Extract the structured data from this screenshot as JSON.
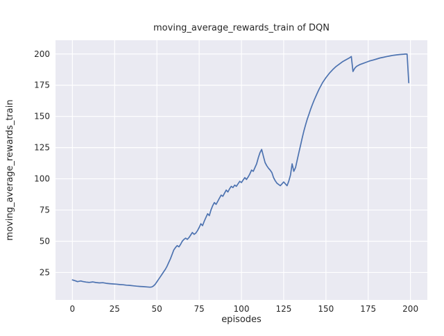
{
  "chart_data": {
    "type": "line",
    "title": "moving_average_rewards_train of DQN",
    "xlabel": "episodes",
    "ylabel": "moving_average_rewards_train",
    "xlim": [
      -10,
      210
    ],
    "ylim": [
      3,
      211
    ],
    "xticks": [
      0,
      25,
      50,
      75,
      100,
      125,
      150,
      175,
      200
    ],
    "yticks": [
      25,
      50,
      75,
      100,
      125,
      150,
      175,
      200
    ],
    "grid": true,
    "legend": null,
    "style": {
      "background": "#eaeaf2",
      "grid_color": "#ffffff",
      "line_color": "#4c72b0",
      "text_color": "#262626",
      "figure_background": "#ffffff"
    },
    "series": [
      {
        "name": "moving_average_rewards_train",
        "points": [
          [
            0,
            19
          ],
          [
            1,
            18.6
          ],
          [
            2,
            18.2
          ],
          [
            3,
            17.6
          ],
          [
            4,
            17.9
          ],
          [
            5,
            18.2
          ],
          [
            6,
            17.8
          ],
          [
            8,
            17.3
          ],
          [
            10,
            17
          ],
          [
            12,
            17.4
          ],
          [
            14,
            16.9
          ],
          [
            16,
            16.6
          ],
          [
            18,
            16.8
          ],
          [
            20,
            16.3
          ],
          [
            22,
            16
          ],
          [
            24,
            15.8
          ],
          [
            26,
            15.6
          ],
          [
            28,
            15.3
          ],
          [
            30,
            15.1
          ],
          [
            32,
            14.8
          ],
          [
            34,
            14.6
          ],
          [
            36,
            14.3
          ],
          [
            38,
            14
          ],
          [
            40,
            13.8
          ],
          [
            42,
            13.6
          ],
          [
            44,
            13.4
          ],
          [
            46,
            13.2
          ],
          [
            47,
            13.4
          ],
          [
            48,
            14.2
          ],
          [
            49,
            15.5
          ],
          [
            50,
            17.5
          ],
          [
            51,
            19.5
          ],
          [
            52,
            21.5
          ],
          [
            53,
            23.5
          ],
          [
            54,
            25.5
          ],
          [
            55,
            27.5
          ],
          [
            56,
            30
          ],
          [
            57,
            33
          ],
          [
            58,
            36
          ],
          [
            59,
            39.5
          ],
          [
            60,
            43
          ],
          [
            61,
            45
          ],
          [
            62,
            46.5
          ],
          [
            63,
            45.5
          ],
          [
            64,
            47.5
          ],
          [
            65,
            50
          ],
          [
            66,
            51.5
          ],
          [
            67,
            52.5
          ],
          [
            68,
            51.5
          ],
          [
            69,
            53
          ],
          [
            70,
            55
          ],
          [
            71,
            57
          ],
          [
            72,
            55.5
          ],
          [
            73,
            56.5
          ],
          [
            74,
            58.5
          ],
          [
            75,
            61
          ],
          [
            76,
            64
          ],
          [
            77,
            62.5
          ],
          [
            78,
            66
          ],
          [
            79,
            69
          ],
          [
            80,
            72
          ],
          [
            81,
            70.5
          ],
          [
            82,
            75
          ],
          [
            83,
            78.5
          ],
          [
            84,
            81
          ],
          [
            85,
            79.5
          ],
          [
            86,
            82
          ],
          [
            87,
            84.5
          ],
          [
            88,
            87
          ],
          [
            89,
            86
          ],
          [
            90,
            88.5
          ],
          [
            91,
            91
          ],
          [
            92,
            89.5
          ],
          [
            93,
            92
          ],
          [
            94,
            94
          ],
          [
            95,
            93
          ],
          [
            96,
            95
          ],
          [
            97,
            94
          ],
          [
            98,
            96
          ],
          [
            99,
            98
          ],
          [
            100,
            97
          ],
          [
            101,
            99
          ],
          [
            102,
            101
          ],
          [
            103,
            99.5
          ],
          [
            104,
            101.5
          ],
          [
            105,
            104
          ],
          [
            106,
            107
          ],
          [
            107,
            106
          ],
          [
            108,
            109
          ],
          [
            109,
            112
          ],
          [
            110,
            117
          ],
          [
            111,
            121
          ],
          [
            112,
            123.5
          ],
          [
            113,
            118
          ],
          [
            114,
            113
          ],
          [
            115,
            110.5
          ],
          [
            116,
            108.5
          ],
          [
            117,
            107
          ],
          [
            118,
            105
          ],
          [
            119,
            101
          ],
          [
            120,
            98.5
          ],
          [
            121,
            96.5
          ],
          [
            122,
            95.5
          ],
          [
            123,
            94.5
          ],
          [
            124,
            96
          ],
          [
            125,
            97.5
          ],
          [
            126,
            96
          ],
          [
            127,
            94.5
          ],
          [
            128,
            98
          ],
          [
            129,
            103
          ],
          [
            130,
            112
          ],
          [
            131,
            106
          ],
          [
            132,
            109
          ],
          [
            133,
            115
          ],
          [
            134,
            121
          ],
          [
            135,
            127
          ],
          [
            136,
            133
          ],
          [
            137,
            138.5
          ],
          [
            138,
            143.5
          ],
          [
            139,
            148
          ],
          [
            140,
            152
          ],
          [
            141,
            156
          ],
          [
            142,
            159.5
          ],
          [
            143,
            163
          ],
          [
            144,
            166
          ],
          [
            145,
            169
          ],
          [
            146,
            172
          ],
          [
            147,
            174.5
          ],
          [
            148,
            177
          ],
          [
            150,
            181
          ],
          [
            152,
            184.5
          ],
          [
            154,
            187.5
          ],
          [
            156,
            190
          ],
          [
            158,
            192
          ],
          [
            160,
            194
          ],
          [
            162,
            195.5
          ],
          [
            164,
            197
          ],
          [
            165,
            198
          ],
          [
            166,
            186
          ],
          [
            167,
            188.5
          ],
          [
            168,
            190
          ],
          [
            170,
            191.5
          ],
          [
            172,
            192.5
          ],
          [
            174,
            193.5
          ],
          [
            176,
            194.5
          ],
          [
            178,
            195.2
          ],
          [
            180,
            196
          ],
          [
            182,
            196.8
          ],
          [
            184,
            197.4
          ],
          [
            186,
            198
          ],
          [
            188,
            198.5
          ],
          [
            190,
            199
          ],
          [
            192,
            199.3
          ],
          [
            194,
            199.6
          ],
          [
            196,
            199.8
          ],
          [
            197,
            200
          ],
          [
            198,
            199.9
          ],
          [
            199,
            177
          ]
        ]
      }
    ]
  }
}
